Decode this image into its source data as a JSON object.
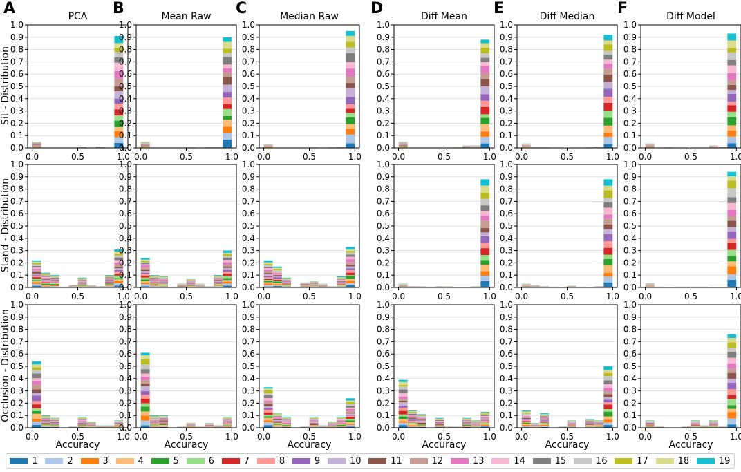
{
  "figure": {
    "panel_letters": [
      "A",
      "B",
      "C",
      "D",
      "E",
      "F"
    ],
    "column_titles": [
      "PCA",
      "Mean Raw",
      "Median Raw",
      "Diff Mean",
      "Diff Median",
      "Diff Model"
    ],
    "row_labels": [
      "Sit - Distribution",
      "Stand - Distribution",
      "Occlusion - Distribution"
    ],
    "xlabel": "Accuracy"
  },
  "legend": {
    "labels": [
      "1",
      "2",
      "3",
      "4",
      "5",
      "6",
      "7",
      "8",
      "9",
      "10",
      "11",
      "12",
      "13",
      "14",
      "15",
      "16",
      "17",
      "18",
      "19"
    ],
    "colors": [
      "#1f77b4",
      "#aec7e8",
      "#ff7f0e",
      "#ffbb78",
      "#2ca02c",
      "#98df8a",
      "#d62728",
      "#ff9896",
      "#9467bd",
      "#c5b0d5",
      "#8c564b",
      "#c49c94",
      "#e377c2",
      "#f7b6d2",
      "#7f7f7f",
      "#c7c7c7",
      "#bcbd22",
      "#dbdb8d",
      "#17becf"
    ]
  },
  "chart_data": {
    "type": "bar",
    "stacked": true,
    "xlabel": "Accuracy",
    "xlim": [
      -0.05,
      1.05
    ],
    "ylim": [
      0,
      1.0
    ],
    "xticks": [
      0.0,
      0.5,
      1.0
    ],
    "xtick_labels": [
      "0.0",
      "0.5",
      "1.0"
    ],
    "yticks": [
      0.0,
      0.1,
      0.2,
      0.3,
      0.4,
      0.5,
      0.6,
      0.7,
      0.8,
      0.9,
      1.0
    ],
    "ytick_labels": [
      "0.0",
      "0.1",
      "0.2",
      "0.3",
      "0.4",
      "0.5",
      "0.6",
      "0.7",
      "0.8",
      "0.9",
      "1.0"
    ],
    "bin_centers": [
      0.05,
      0.15,
      0.25,
      0.35,
      0.45,
      0.55,
      0.65,
      0.75,
      0.85,
      0.95
    ],
    "bin_width": 0.1,
    "grid": "horizontal",
    "panels": [
      [
        {
          "column": "PCA",
          "row": "Sit - Distribution",
          "totals": [
            0.05,
            0,
            0,
            0,
            0,
            0.01,
            0,
            0.01,
            0,
            0.91
          ]
        },
        {
          "column": "Mean Raw",
          "row": "Sit - Distribution",
          "totals": [
            0.05,
            0,
            0,
            0,
            0,
            0.005,
            0,
            0.01,
            0.01,
            0.9
          ]
        },
        {
          "column": "Median Raw",
          "row": "Sit - Distribution",
          "totals": [
            0.03,
            0,
            0,
            0,
            0,
            0.005,
            0,
            0.005,
            0.01,
            0.95
          ]
        },
        {
          "column": "Diff Mean",
          "row": "Sit - Distribution",
          "totals": [
            0.05,
            0,
            0,
            0,
            0,
            0,
            0.005,
            0.02,
            0.02,
            0.88
          ]
        },
        {
          "column": "Diff Median",
          "row": "Sit - Distribution",
          "totals": [
            0.035,
            0.005,
            0.005,
            0,
            0,
            0,
            0,
            0.005,
            0.01,
            0.92
          ]
        },
        {
          "column": "Diff Model",
          "row": "Sit - Distribution",
          "totals": [
            0.035,
            0,
            0.005,
            0,
            0,
            0,
            0,
            0.02,
            0.01,
            0.93
          ]
        }
      ],
      [
        {
          "column": "PCA",
          "row": "Stand - Distribution",
          "totals": [
            0.22,
            0.12,
            0.1,
            0,
            0.02,
            0.08,
            0.02,
            0.01,
            0.1,
            0.31
          ]
        },
        {
          "column": "Mean Raw",
          "row": "Stand - Distribution",
          "totals": [
            0.24,
            0.1,
            0.09,
            0,
            0.03,
            0.07,
            0.03,
            0.01,
            0.1,
            0.3
          ]
        },
        {
          "column": "Median Raw",
          "row": "Stand - Distribution",
          "totals": [
            0.22,
            0.17,
            0.08,
            0,
            0.04,
            0.05,
            0.03,
            0.01,
            0.09,
            0.33
          ]
        },
        {
          "column": "Diff Mean",
          "row": "Stand - Distribution",
          "totals": [
            0.03,
            0.01,
            0.01,
            0,
            0.01,
            0.01,
            0.005,
            0.005,
            0.01,
            0.88
          ]
        },
        {
          "column": "Diff Median",
          "row": "Stand - Distribution",
          "totals": [
            0.03,
            0.02,
            0.01,
            0,
            0.005,
            0.015,
            0,
            0.005,
            0.01,
            0.88
          ]
        },
        {
          "column": "Diff Model",
          "row": "Stand - Distribution",
          "totals": [
            0.035,
            0,
            0.005,
            0,
            0,
            0,
            0,
            0.005,
            0.005,
            0.94
          ]
        }
      ],
      [
        {
          "column": "PCA",
          "row": "Occlusion - Distribution",
          "totals": [
            0.54,
            0.1,
            0.08,
            0,
            0.01,
            0.09,
            0.05,
            0.02,
            0.02,
            0.06
          ]
        },
        {
          "column": "Mean Raw",
          "row": "Occlusion - Distribution",
          "totals": [
            0.61,
            0.1,
            0.1,
            0,
            0.01,
            0.04,
            0.01,
            0.04,
            0.02,
            0.09
          ]
        },
        {
          "column": "Median Raw",
          "row": "Occlusion - Distribution",
          "totals": [
            0.33,
            0.12,
            0.09,
            0,
            0.01,
            0.09,
            0.02,
            0.05,
            0.09,
            0.24
          ]
        },
        {
          "column": "Diff Mean",
          "row": "Occlusion - Distribution",
          "totals": [
            0.39,
            0.14,
            0.11,
            0,
            0.08,
            0.01,
            0.01,
            0.08,
            0.06,
            0.13
          ]
        },
        {
          "column": "Diff Median",
          "row": "Occlusion - Distribution",
          "totals": [
            0.14,
            0.04,
            0.12,
            0,
            0.01,
            0.06,
            0,
            0.07,
            0.06,
            0.5
          ]
        },
        {
          "column": "Diff Model",
          "row": "Occlusion - Distribution",
          "totals": [
            0.06,
            0.01,
            0,
            0,
            0.01,
            0.06,
            0.02,
            0.06,
            0.01,
            0.76
          ]
        }
      ]
    ]
  }
}
